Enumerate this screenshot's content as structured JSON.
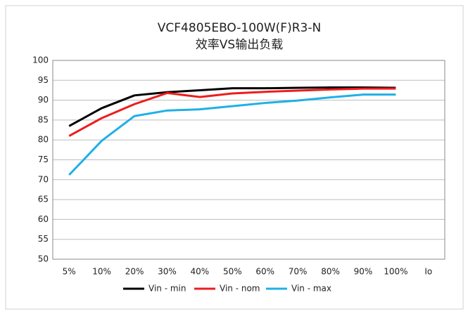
{
  "chart_data": {
    "type": "line",
    "title": "VCF4805EBO-100W(F)R3-N",
    "subtitle": "效率VS输出负载",
    "x_label": "Io",
    "categories": [
      "5%",
      "10%",
      "20%",
      "30%",
      "40%",
      "50%",
      "60%",
      "70%",
      "80%",
      "90%",
      "100%"
    ],
    "series": [
      {
        "name": "Vin - min",
        "color": "#000000",
        "values": [
          83.5,
          88,
          91.2,
          92,
          92.5,
          93,
          93,
          93.1,
          93.2,
          93.2,
          93.1
        ]
      },
      {
        "name": "Vin - nom",
        "color": "#ee1c1c",
        "values": [
          81,
          85.5,
          89,
          91.8,
          90.8,
          91.7,
          92.1,
          92.4,
          92.7,
          92.9,
          92.9
        ]
      },
      {
        "name": "Vin - max",
        "color": "#1fb0e6",
        "values": [
          71.2,
          79.8,
          86,
          87.4,
          87.7,
          88.5,
          89.3,
          89.9,
          90.7,
          91.4,
          91.4
        ]
      }
    ],
    "ylim": [
      50,
      100
    ],
    "yticks": [
      50,
      55,
      60,
      65,
      70,
      75,
      80,
      85,
      90,
      95,
      100
    ],
    "grid": true,
    "legend": "bottom"
  }
}
